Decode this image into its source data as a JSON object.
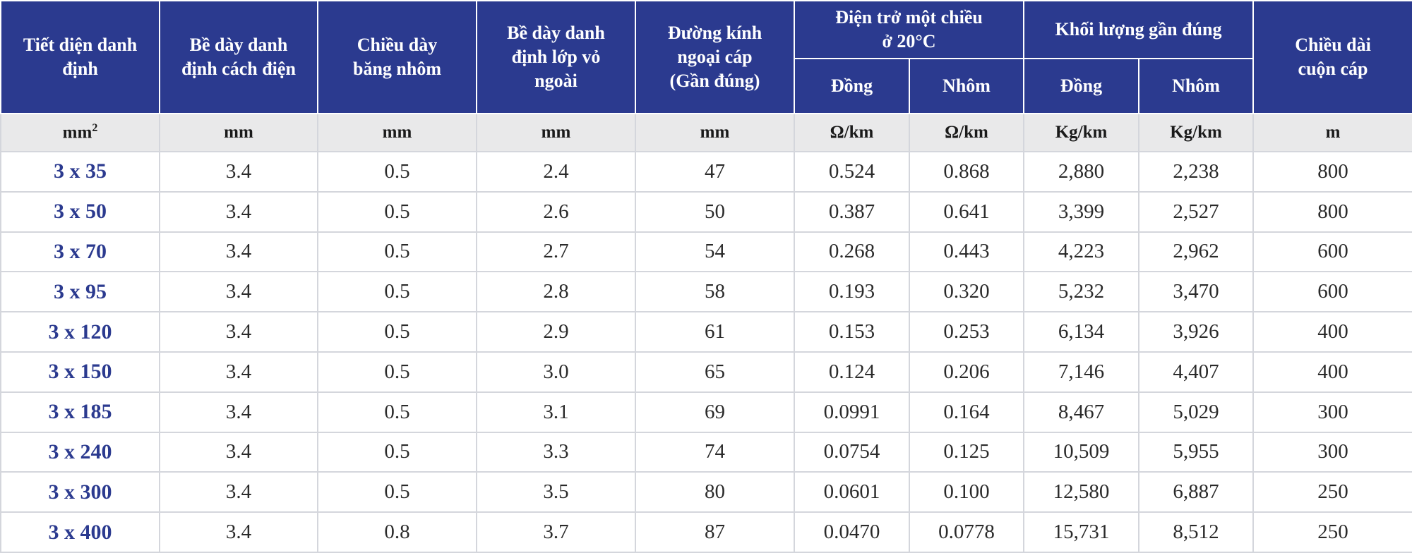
{
  "colors": {
    "header_bg": "#2b3a8f",
    "units_bg": "#e9e9ea",
    "size_text": "#2b3a8f"
  },
  "headers": {
    "cross_section": [
      "Tiết diện danh",
      "định"
    ],
    "insulation_thickness": [
      "Bề dày danh",
      "định cách điện"
    ],
    "aluminum_tape": [
      "Chiều dày",
      "băng nhôm"
    ],
    "sheath_thickness": [
      "Bề dày danh",
      "định lớp vỏ",
      "ngoài"
    ],
    "outer_diameter": [
      "Đường kính",
      "ngoại cáp",
      "(Gần đúng)"
    ],
    "dc_resistance": [
      "Điện trở một chiều",
      "ở 20°C"
    ],
    "approx_weight": [
      "Khối lượng gần đúng"
    ],
    "drum_length": [
      "Chiều dài",
      "cuộn cáp"
    ],
    "copper": "Đồng",
    "aluminum": "Nhôm",
    "copper_w": "Đồng",
    "aluminum_w": "Nhôm"
  },
  "units": {
    "cross_section_base": "mm",
    "cross_section_sup": "2",
    "insulation": "mm",
    "tape": "mm",
    "sheath": "mm",
    "diameter": "mm",
    "res_cu": "Ω/km",
    "res_al": "Ω/km",
    "wt_cu": "Kg/km",
    "wt_al": "Kg/km",
    "length": "m"
  },
  "rows": [
    [
      "3 x 35",
      "3.4",
      "0.5",
      "2.4",
      "47",
      "0.524",
      "0.868",
      "2,880",
      "2,238",
      "800"
    ],
    [
      "3 x 50",
      "3.4",
      "0.5",
      "2.6",
      "50",
      "0.387",
      "0.641",
      "3,399",
      "2,527",
      "800"
    ],
    [
      "3 x 70",
      "3.4",
      "0.5",
      "2.7",
      "54",
      "0.268",
      "0.443",
      "4,223",
      "2,962",
      "600"
    ],
    [
      "3 x 95",
      "3.4",
      "0.5",
      "2.8",
      "58",
      "0.193",
      "0.320",
      "5,232",
      "3,470",
      "600"
    ],
    [
      "3 x 120",
      "3.4",
      "0.5",
      "2.9",
      "61",
      "0.153",
      "0.253",
      "6,134",
      "3,926",
      "400"
    ],
    [
      "3 x 150",
      "3.4",
      "0.5",
      "3.0",
      "65",
      "0.124",
      "0.206",
      "7,146",
      "4,407",
      "400"
    ],
    [
      "3 x 185",
      "3.4",
      "0.5",
      "3.1",
      "69",
      "0.0991",
      "0.164",
      "8,467",
      "5,029",
      "300"
    ],
    [
      "3 x 240",
      "3.4",
      "0.5",
      "3.3",
      "74",
      "0.0754",
      "0.125",
      "10,509",
      "5,955",
      "300"
    ],
    [
      "3 x 300",
      "3.4",
      "0.5",
      "3.5",
      "80",
      "0.0601",
      "0.100",
      "12,580",
      "6,887",
      "250"
    ],
    [
      "3 x 400",
      "3.4",
      "0.8",
      "3.7",
      "87",
      "0.0470",
      "0.0778",
      "15,731",
      "8,512",
      "250"
    ]
  ]
}
